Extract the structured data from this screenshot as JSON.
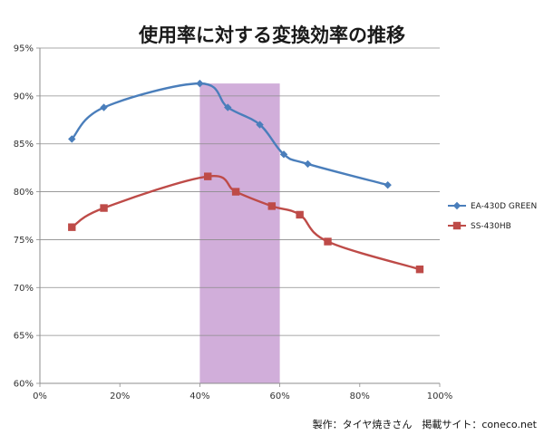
{
  "chart_data": {
    "type": "line",
    "title": "使用率に対する変換効率の推移",
    "xlabel": "",
    "ylabel": "",
    "xlim": [
      0,
      100
    ],
    "ylim": [
      60,
      95
    ],
    "x_tick_labels": [
      "0%",
      "20%",
      "40%",
      "60%",
      "80%",
      "100%"
    ],
    "y_tick_labels": [
      "60%",
      "65%",
      "70%",
      "75%",
      "80%",
      "85%",
      "90%",
      "95%"
    ],
    "grid": true,
    "legend_position": "right",
    "highlight_band": {
      "from": 40,
      "to": 60,
      "color": "#c9a0d3"
    },
    "series": [
      {
        "name": "EA-430D GREEN",
        "color": "#4a7ebb",
        "marker": "diamond",
        "x": [
          8,
          16,
          40,
          47,
          55,
          61,
          67,
          87
        ],
        "y": [
          85.5,
          88.8,
          91.3,
          88.8,
          87.0,
          83.9,
          82.9,
          80.7
        ]
      },
      {
        "name": "SS-430HB",
        "color": "#be4b48",
        "marker": "square",
        "x": [
          8,
          16,
          42,
          49,
          58,
          65,
          72,
          95
        ],
        "y": [
          76.3,
          78.3,
          81.6,
          80.0,
          78.5,
          77.6,
          74.8,
          71.9
        ]
      }
    ]
  },
  "credit": "製作：タイヤ焼きさん　掲載サイト：coneco.net"
}
